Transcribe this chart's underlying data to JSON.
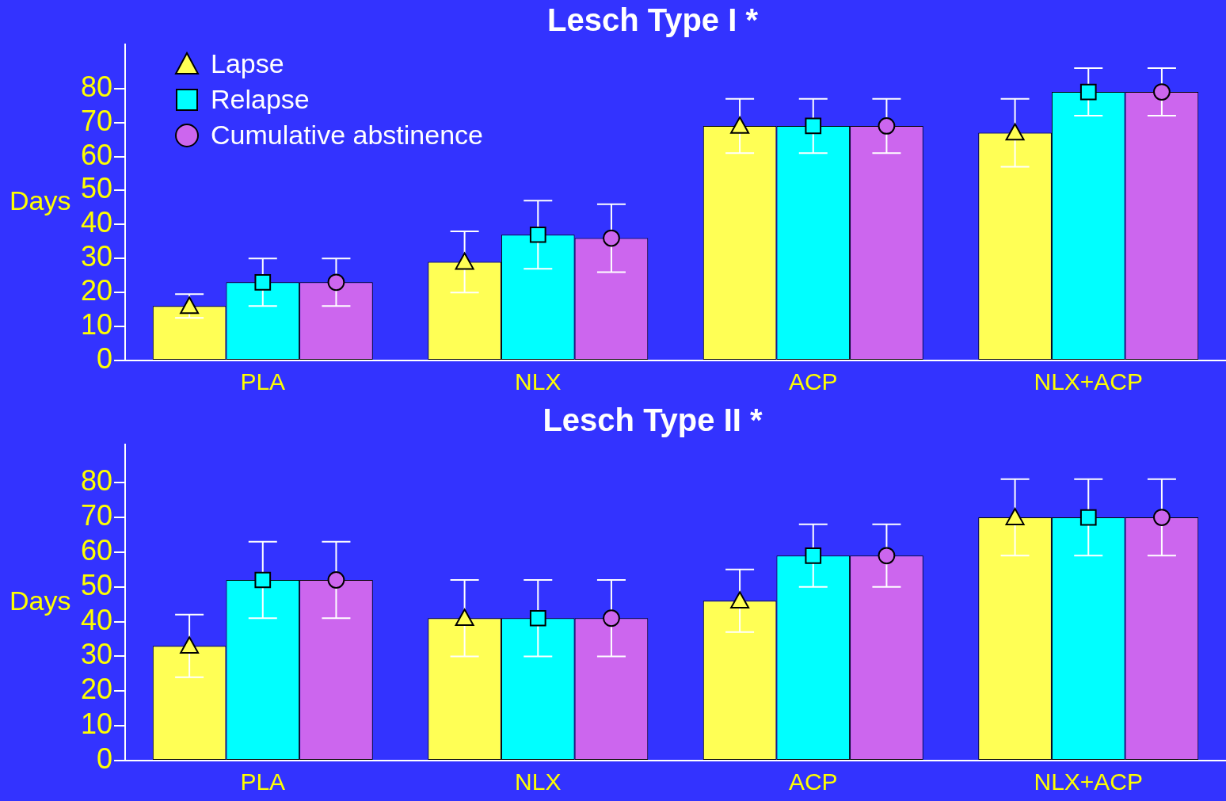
{
  "chart_data": [
    {
      "type": "bar",
      "title": "Lesch Type I *",
      "ylabel": "Days",
      "categories": [
        "PLA",
        "NLX",
        "ACP",
        "NLX+ACP"
      ],
      "ylim": [
        0,
        93
      ],
      "yticks": [
        0,
        10,
        20,
        30,
        40,
        50,
        60,
        70,
        80
      ],
      "grid": false,
      "legend": "top left",
      "series": [
        {
          "color": "#ffff55",
          "values": [
            16,
            29,
            69,
            67
          ],
          "errors": [
            3.5,
            9,
            8,
            10
          ]
        },
        {
          "color": "#00ffff",
          "values": [
            23,
            37,
            69,
            79
          ],
          "errors": [
            7,
            10,
            8,
            7
          ]
        },
        {
          "color": "#cc66ee",
          "values": [
            23,
            36,
            69,
            79
          ],
          "errors": [
            7,
            10,
            8,
            7
          ]
        },
        {
          "type": "scatter",
          "name": "Lapse",
          "color": "#ffff55",
          "marker": "triangle",
          "x": [
            "PLA",
            "NLX",
            "ACP",
            "NLX+ACP"
          ],
          "values": [
            16,
            29,
            69,
            67
          ]
        },
        {
          "type": "scatter",
          "name": "Relapse",
          "color": "#00ffff",
          "marker": "square",
          "x": [
            "PLA",
            "NLX",
            "ACP",
            "NLX+ACP"
          ],
          "values": [
            23,
            37,
            69,
            79
          ]
        },
        {
          "type": "scatter",
          "name": "Cumulative abstinence",
          "color": "#cc66ee",
          "marker": "circle",
          "x": [
            "PLA",
            "NLX",
            "ACP",
            "NLX+ACP"
          ],
          "values": [
            23,
            36,
            69,
            79
          ]
        }
      ]
    },
    {
      "type": "bar",
      "title": "Lesch Type II *",
      "ylabel": "Days",
      "categories": [
        "PLA",
        "NLX",
        "ACP",
        "NLX+ACP"
      ],
      "ylim": [
        0,
        91
      ],
      "yticks": [
        0,
        10,
        20,
        30,
        40,
        50,
        60,
        70,
        80
      ],
      "grid": false,
      "series": [
        {
          "color": "#ffff55",
          "values": [
            33,
            41,
            46,
            70
          ],
          "errors": [
            9,
            11,
            9,
            11
          ]
        },
        {
          "color": "#00ffff",
          "values": [
            52,
            41,
            59,
            70
          ],
          "errors": [
            11,
            11,
            9,
            11
          ]
        },
        {
          "color": "#cc66ee",
          "values": [
            52,
            41,
            59,
            70
          ],
          "errors": [
            11,
            11,
            9,
            11
          ]
        },
        {
          "type": "scatter",
          "color": "#ffff55",
          "marker": "triangle",
          "x": [
            "PLA",
            "NLX",
            "ACP",
            "NLX+ACP"
          ],
          "values": [
            33,
            41,
            46,
            70
          ]
        },
        {
          "type": "scatter",
          "color": "#00ffff",
          "marker": "square",
          "x": [
            "PLA",
            "NLX",
            "ACP",
            "NLX+ACP"
          ],
          "values": [
            52,
            41,
            59,
            70
          ]
        },
        {
          "type": "scatter",
          "color": "#cc66ee",
          "marker": "circle",
          "x": [
            "PLA",
            "NLX",
            "ACP",
            "NLX+ACP"
          ],
          "values": [
            52,
            41,
            59,
            70
          ]
        }
      ]
    }
  ]
}
